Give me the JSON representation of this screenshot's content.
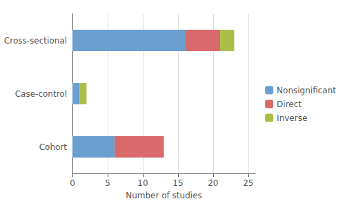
{
  "chart_data": {
    "type": "bar",
    "orientation": "horizontal",
    "stacked": true,
    "categories": [
      "Cohort",
      "Case-control",
      "Cross-sectional"
    ],
    "series": [
      {
        "name": "Nonsignificant",
        "color": "#6B9FD0",
        "values": [
          6,
          1,
          16
        ]
      },
      {
        "name": "Direct",
        "color": "#D9696A",
        "values": [
          7,
          0,
          5
        ]
      },
      {
        "name": "Inverse",
        "color": "#AABF45",
        "values": [
          0,
          1,
          2
        ]
      }
    ],
    "xlabel": "Number of studies",
    "xlim": [
      0,
      26
    ],
    "xticks": [
      0,
      5,
      10,
      15,
      20,
      25
    ],
    "grid": true,
    "legend": "right"
  }
}
